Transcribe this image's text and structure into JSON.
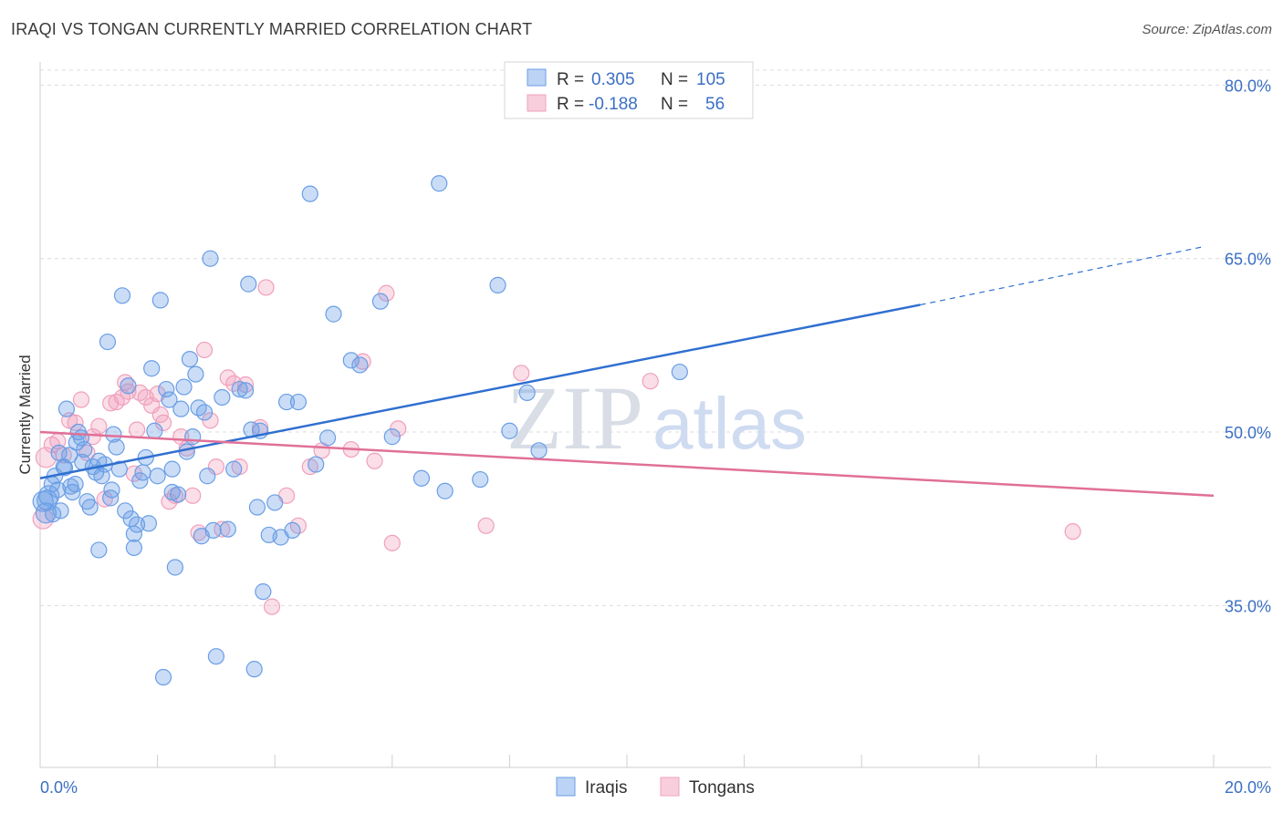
{
  "header": {
    "title": "IRAQI VS TONGAN CURRENTLY MARRIED CORRELATION CHART",
    "source": "Source: ZipAtlas.com"
  },
  "watermark": {
    "zip": "ZIP",
    "atlas": "atlas"
  },
  "colors": {
    "iraqi": "#6a9ee6",
    "iraqi_line": "#2f6fd0",
    "tongan": "#f0a0bc",
    "tongan_line": "#e07098"
  },
  "chart_data": {
    "type": "scatter",
    "title": "IRAQI VS TONGAN CURRENTLY MARRIED CORRELATION CHART",
    "xlabel": "",
    "ylabel": "Currently Married",
    "xlim": [
      0,
      20
    ],
    "ylim": [
      21,
      82
    ],
    "x_tick_labels": {
      "min": "0.0%",
      "max": "20.0%"
    },
    "y_ticks": [
      {
        "value": 80,
        "label": "80.0%"
      },
      {
        "value": 65,
        "label": "65.0%"
      },
      {
        "value": 50,
        "label": "50.0%"
      },
      {
        "value": 35,
        "label": "35.0%"
      }
    ],
    "legend": {
      "r_label": "R =",
      "n_label": "N =",
      "entries": [
        {
          "name": "Iraqis",
          "r": "0.305",
          "n": "105"
        },
        {
          "name": "Tongans",
          "r": "-0.188",
          "n": "56"
        }
      ]
    },
    "series": [
      {
        "name": "Iraqis",
        "trend": {
          "x0": 0,
          "y0": 46.0,
          "x1": 15.0,
          "y1": 61.0,
          "dashed_to_x": 19.8,
          "dashed_to_y": 66.0
        },
        "points": [
          [
            0.05,
            44.0
          ],
          [
            0.1,
            43.0
          ],
          [
            0.15,
            44.5
          ],
          [
            0.2,
            45.5
          ],
          [
            0.25,
            46.2
          ],
          [
            0.3,
            45.0
          ],
          [
            0.35,
            43.2
          ],
          [
            0.4,
            47.0
          ],
          [
            0.45,
            52.0
          ],
          [
            0.5,
            48.0
          ],
          [
            0.55,
            44.8
          ],
          [
            0.6,
            45.5
          ],
          [
            0.65,
            50.0
          ],
          [
            0.7,
            49.5
          ],
          [
            0.75,
            48.5
          ],
          [
            0.8,
            44.0
          ],
          [
            0.85,
            43.5
          ],
          [
            0.9,
            47.0
          ],
          [
            0.95,
            46.5
          ],
          [
            1.0,
            47.5
          ],
          [
            1.0,
            39.8
          ],
          [
            1.05,
            46.2
          ],
          [
            1.1,
            47.2
          ],
          [
            1.15,
            57.8
          ],
          [
            1.2,
            44.3
          ],
          [
            1.25,
            49.8
          ],
          [
            1.3,
            48.7
          ],
          [
            1.35,
            46.8
          ],
          [
            1.4,
            61.8
          ],
          [
            1.45,
            43.2
          ],
          [
            1.5,
            54.0
          ],
          [
            1.55,
            42.5
          ],
          [
            1.6,
            41.2
          ],
          [
            1.6,
            40.0
          ],
          [
            1.65,
            42.0
          ],
          [
            1.7,
            45.8
          ],
          [
            1.75,
            46.5
          ],
          [
            1.8,
            47.8
          ],
          [
            1.85,
            42.1
          ],
          [
            1.9,
            55.5
          ],
          [
            1.95,
            50.1
          ],
          [
            2.0,
            46.2
          ],
          [
            2.05,
            61.4
          ],
          [
            2.1,
            28.8
          ],
          [
            2.15,
            53.7
          ],
          [
            2.2,
            52.8
          ],
          [
            2.25,
            44.8
          ],
          [
            2.3,
            38.3
          ],
          [
            2.35,
            44.6
          ],
          [
            2.4,
            52.0
          ],
          [
            2.45,
            53.9
          ],
          [
            2.5,
            48.3
          ],
          [
            2.55,
            56.3
          ],
          [
            2.6,
            49.6
          ],
          [
            2.65,
            55.0
          ],
          [
            2.7,
            52.1
          ],
          [
            2.75,
            41.0
          ],
          [
            2.8,
            51.7
          ],
          [
            2.85,
            46.2
          ],
          [
            2.9,
            65.0
          ],
          [
            2.95,
            41.5
          ],
          [
            3.0,
            30.6
          ],
          [
            3.1,
            53.0
          ],
          [
            3.2,
            41.6
          ],
          [
            3.3,
            46.8
          ],
          [
            3.4,
            53.7
          ],
          [
            3.5,
            53.6
          ],
          [
            3.55,
            62.8
          ],
          [
            3.6,
            50.2
          ],
          [
            3.65,
            29.5
          ],
          [
            3.7,
            43.5
          ],
          [
            3.75,
            50.1
          ],
          [
            3.8,
            36.2
          ],
          [
            3.9,
            41.1
          ],
          [
            4.0,
            43.9
          ],
          [
            4.1,
            40.9
          ],
          [
            4.2,
            52.6
          ],
          [
            4.3,
            41.5
          ],
          [
            4.4,
            52.6
          ],
          [
            4.6,
            70.6
          ],
          [
            4.7,
            47.2
          ],
          [
            4.9,
            49.5
          ],
          [
            5.0,
            60.2
          ],
          [
            5.3,
            56.2
          ],
          [
            5.45,
            55.8
          ],
          [
            5.8,
            61.3
          ],
          [
            6.0,
            49.6
          ],
          [
            6.5,
            46.0
          ],
          [
            6.8,
            71.5
          ],
          [
            6.9,
            44.9
          ],
          [
            7.5,
            45.9
          ],
          [
            7.8,
            62.7
          ],
          [
            8.0,
            50.1
          ],
          [
            8.3,
            53.4
          ],
          [
            8.5,
            48.4
          ],
          [
            10.9,
            55.2
          ],
          [
            0.12,
            44.1
          ],
          [
            0.22,
            42.9
          ],
          [
            0.32,
            48.2
          ],
          [
            0.42,
            46.9
          ],
          [
            0.52,
            45.3
          ],
          [
            0.62,
            49.1
          ],
          [
            0.72,
            47.4
          ],
          [
            1.22,
            45.0
          ],
          [
            2.25,
            46.8
          ]
        ]
      },
      {
        "name": "Tongans",
        "trend": {
          "x0": 0,
          "y0": 50.0,
          "x1": 20.0,
          "y1": 44.5
        },
        "points": [
          [
            0.05,
            42.5
          ],
          [
            0.1,
            47.8
          ],
          [
            0.2,
            48.9
          ],
          [
            0.3,
            49.2
          ],
          [
            0.4,
            48.0
          ],
          [
            0.5,
            51.0
          ],
          [
            0.6,
            50.8
          ],
          [
            0.7,
            52.8
          ],
          [
            0.8,
            48.2
          ],
          [
            0.9,
            49.6
          ],
          [
            1.0,
            50.5
          ],
          [
            1.1,
            44.2
          ],
          [
            1.2,
            52.5
          ],
          [
            1.3,
            52.6
          ],
          [
            1.4,
            53.0
          ],
          [
            1.45,
            54.3
          ],
          [
            1.5,
            53.5
          ],
          [
            1.6,
            46.4
          ],
          [
            1.65,
            50.2
          ],
          [
            1.7,
            53.4
          ],
          [
            1.8,
            53.0
          ],
          [
            1.9,
            52.3
          ],
          [
            2.0,
            53.3
          ],
          [
            2.05,
            51.5
          ],
          [
            2.1,
            50.8
          ],
          [
            2.2,
            44.0
          ],
          [
            2.3,
            44.5
          ],
          [
            2.4,
            49.6
          ],
          [
            2.5,
            48.6
          ],
          [
            2.6,
            44.5
          ],
          [
            2.7,
            41.3
          ],
          [
            2.8,
            57.1
          ],
          [
            2.9,
            51.0
          ],
          [
            3.0,
            47.0
          ],
          [
            3.1,
            41.6
          ],
          [
            3.2,
            54.7
          ],
          [
            3.3,
            54.2
          ],
          [
            3.4,
            47.0
          ],
          [
            3.5,
            54.1
          ],
          [
            3.75,
            50.4
          ],
          [
            3.85,
            62.5
          ],
          [
            3.95,
            34.9
          ],
          [
            4.2,
            44.5
          ],
          [
            4.4,
            41.9
          ],
          [
            4.6,
            47.0
          ],
          [
            4.8,
            48.4
          ],
          [
            5.3,
            48.5
          ],
          [
            5.5,
            56.1
          ],
          [
            5.7,
            47.5
          ],
          [
            5.9,
            62.0
          ],
          [
            6.0,
            40.4
          ],
          [
            6.1,
            50.3
          ],
          [
            7.6,
            41.9
          ],
          [
            8.2,
            55.1
          ],
          [
            10.4,
            54.4
          ],
          [
            17.6,
            41.4
          ]
        ]
      }
    ]
  },
  "extra_points_note": ""
}
